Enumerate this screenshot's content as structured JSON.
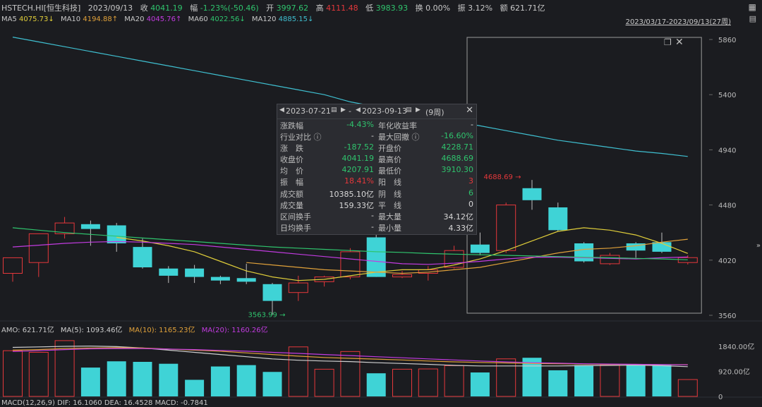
{
  "header": {
    "code": "HSTECH.HI[恒生科技]",
    "date": "2023/09/13",
    "close_label": "收",
    "close": "4041.19",
    "change_label": "幅",
    "change": "-1.23%(-50.46)",
    "open_label": "开",
    "open": "3997.62",
    "high_label": "高",
    "high": "4111.48",
    "low_label": "低",
    "low": "3983.93",
    "turnover_label": "换",
    "turnover": "0.00%",
    "amplitude_label": "振",
    "amplitude": "3.12%",
    "amount_label": "额",
    "amount": "621.71亿"
  },
  "ma_line": {
    "ma5": "MA5",
    "ma5_val": "4075.73↓",
    "ma10": "MA10",
    "ma10_val": "4194.88↑",
    "ma20": "MA20",
    "ma20_val": "4045.76↑",
    "ma60": "MA60",
    "ma60_val": "4022.56↓",
    "ma120": "MA120",
    "ma120_val": "4885.15↓"
  },
  "range_label": "2023/03/17-2023/09/13(27周)",
  "amo_line": {
    "amo": "AMO: 621.71亿",
    "ma5": "MA(5): 1093.46亿",
    "ma10": "MA(10): 1165.23亿",
    "ma20": "MA(20): 1160.26亿"
  },
  "macd_line": "MACD(12,26,9)  DIF: 16.1060  DEA: 16.4528  MACD: -0.7841",
  "colors": {
    "up": "#e5383b",
    "down": "#3fd3d6",
    "ma5": "#e0ce3a",
    "ma10": "#e0a13a",
    "ma20": "#c23be0",
    "ma60": "#2fc46d",
    "ma120": "#3fbfd0"
  },
  "popup": {
    "start": "2023-07-21",
    "end": "2023-09-13",
    "weeks": "(9周)",
    "rows": [
      {
        "lk": "涨跌幅",
        "lv": "-4.43%",
        "lc": "g",
        "rk": "年化收益率",
        "rv": "-",
        "rc": "n"
      },
      {
        "lk": "行业对比 ⓘ",
        "lv": "-",
        "lc": "n",
        "rk": "最大回撤 ⓘ",
        "rv": "-16.60%",
        "rc": "g"
      },
      {
        "lk": "涨　跌",
        "lv": "-187.52",
        "lc": "g",
        "rk": "开盘价",
        "rv": "4228.71",
        "rc": "g"
      },
      {
        "lk": "收盘价",
        "lv": "4041.19",
        "lc": "g",
        "rk": "最高价",
        "rv": "4688.69",
        "rc": "g"
      },
      {
        "lk": "均　价",
        "lv": "4207.91",
        "lc": "g",
        "rk": "最低价",
        "rv": "3910.30",
        "rc": "g"
      },
      {
        "lk": "振　幅",
        "lv": "18.41%",
        "lc": "r",
        "rk": "阳　线",
        "rv": "3",
        "rc": "r"
      },
      {
        "lk": "成交额",
        "lv": "10385.10亿",
        "lc": "n",
        "rk": "阴　线",
        "rv": "6",
        "rc": "g"
      },
      {
        "lk": "成交量",
        "lv": "159.33亿",
        "lc": "n",
        "rk": "平　线",
        "rv": "0",
        "rc": "n"
      },
      {
        "lk": "区间换手",
        "lv": "-",
        "lc": "n",
        "rk": "最大量",
        "rv": "34.12亿",
        "rc": "n"
      },
      {
        "lk": "日均换手",
        "lv": "-",
        "lc": "n",
        "rk": "最小量",
        "rv": "4.33亿",
        "rc": "n"
      }
    ]
  },
  "chart_data": {
    "type": "candlestick",
    "price_axis_ticks": [
      "5860",
      "5400",
      "4940",
      "4480",
      "4020",
      "3560"
    ],
    "price_ylim": [
      3560,
      5860
    ],
    "volume_axis_ticks": [
      "1840.00亿",
      "920.00亿",
      "0"
    ],
    "volume_ylim": [
      0,
      1840
    ],
    "annotations": [
      {
        "text": "4688.69",
        "candle": 19
      },
      {
        "text": "3563.99",
        "candle": 10
      }
    ],
    "candles": [
      {
        "o": 3910,
        "c": 4040,
        "h": 4040,
        "l": 3840,
        "vol": 1680
      },
      {
        "o": 4000,
        "c": 4240,
        "h": 4240,
        "l": 3880,
        "vol": 1620
      },
      {
        "o": 4240,
        "c": 4330,
        "h": 4380,
        "l": 4200,
        "vol": 2050
      },
      {
        "o": 4320,
        "c": 4280,
        "h": 4350,
        "l": 4140,
        "vol": 1060
      },
      {
        "o": 4310,
        "c": 4160,
        "h": 4330,
        "l": 4090,
        "vol": 1290
      },
      {
        "o": 4130,
        "c": 3960,
        "h": 4200,
        "l": 3950,
        "vol": 1270
      },
      {
        "o": 3950,
        "c": 3890,
        "h": 3970,
        "l": 3830,
        "vol": 1200
      },
      {
        "o": 3950,
        "c": 3880,
        "h": 3980,
        "l": 3830,
        "vol": 610
      },
      {
        "o": 3880,
        "c": 3850,
        "h": 3890,
        "l": 3820,
        "vol": 1100
      },
      {
        "o": 3870,
        "c": 3840,
        "h": 3990,
        "l": 3820,
        "vol": 1150
      },
      {
        "o": 3820,
        "c": 3680,
        "h": 3830,
        "l": 3564,
        "vol": 900
      },
      {
        "o": 3750,
        "c": 3830,
        "h": 3890,
        "l": 3680,
        "vol": 1820
      },
      {
        "o": 3840,
        "c": 3880,
        "h": 3890,
        "l": 3800,
        "vol": 1000
      },
      {
        "o": 3880,
        "c": 4090,
        "h": 4120,
        "l": 3860,
        "vol": 1650
      },
      {
        "o": 4210,
        "c": 3880,
        "h": 4250,
        "l": 3880,
        "vol": 850
      },
      {
        "o": 3880,
        "c": 3900,
        "h": 3930,
        "l": 3870,
        "vol": 1000
      },
      {
        "o": 3910,
        "c": 3940,
        "h": 3970,
        "l": 3850,
        "vol": 1010
      },
      {
        "o": 3960,
        "c": 4100,
        "h": 4140,
        "l": 3950,
        "vol": 1130
      },
      {
        "o": 4150,
        "c": 4080,
        "h": 4250,
        "l": 4060,
        "vol": 880
      },
      {
        "o": 4100,
        "c": 4480,
        "h": 4500,
        "l": 4080,
        "vol": 1380
      },
      {
        "o": 4620,
        "c": 4520,
        "h": 4689,
        "l": 4440,
        "vol": 1420
      },
      {
        "o": 4460,
        "c": 4270,
        "h": 4500,
        "l": 4260,
        "vol": 960
      },
      {
        "o": 4160,
        "c": 4010,
        "h": 4170,
        "l": 4000,
        "vol": 1150
      },
      {
        "o": 3990,
        "c": 4060,
        "h": 4080,
        "l": 3980,
        "vol": 1170
      },
      {
        "o": 4160,
        "c": 4100,
        "h": 4170,
        "l": 4040,
        "vol": 1180
      },
      {
        "o": 4170,
        "c": 4090,
        "h": 4250,
        "l": 4080,
        "vol": 1150
      },
      {
        "o": 4000,
        "c": 4041,
        "h": 4060,
        "l": 3984,
        "vol": 620
      }
    ],
    "series": [
      {
        "name": "MA5",
        "values": [
          null,
          null,
          null,
          null,
          4210,
          4180,
          4140,
          4090,
          4010,
          3930,
          3880,
          3850,
          3860,
          3890,
          3920,
          3940,
          3940,
          3980,
          4030,
          4100,
          4180,
          4260,
          4290,
          4270,
          4230,
          4160,
          4076
        ]
      },
      {
        "name": "MA10",
        "values": [
          null,
          null,
          null,
          null,
          null,
          null,
          null,
          null,
          null,
          4000,
          3980,
          3960,
          3940,
          3930,
          3920,
          3910,
          3920,
          3940,
          3960,
          4000,
          4040,
          4080,
          4110,
          4120,
          4140,
          4170,
          4195
        ]
      },
      {
        "name": "MA20",
        "values": [
          4130,
          4145,
          4160,
          4170,
          4175,
          4170,
          4160,
          4150,
          4130,
          4110,
          4090,
          4070,
          4050,
          4030,
          4010,
          3990,
          3985,
          3995,
          4010,
          4030,
          4045,
          4045,
          4040,
          4035,
          4030,
          4040,
          4046
        ]
      },
      {
        "name": "MA60",
        "values": [
          4290,
          4270,
          4250,
          4235,
          4220,
          4205,
          4190,
          4175,
          4160,
          4145,
          4130,
          4120,
          4110,
          4100,
          4090,
          4085,
          4075,
          4070,
          4065,
          4060,
          4055,
          4050,
          4045,
          4040,
          4035,
          4030,
          4023
        ]
      },
      {
        "name": "MA120",
        "values": [
          5880,
          5840,
          5800,
          5760,
          5720,
          5680,
          5640,
          5600,
          5560,
          5520,
          5480,
          5440,
          5400,
          5340,
          5300,
          5260,
          5220,
          5180,
          5140,
          5100,
          5060,
          5020,
          4990,
          4960,
          4930,
          4910,
          4885
        ]
      }
    ],
    "volume_series": [
      {
        "name": "MA(5)",
        "values": [
          1800,
          1820,
          1840,
          1850,
          1830,
          1780,
          1700,
          1620,
          1540,
          1460,
          1380,
          1330,
          1300,
          1280,
          1240,
          1210,
          1180,
          1140,
          1120,
          1120,
          1120,
          1120,
          1130,
          1140,
          1150,
          1130,
          1093
        ]
      },
      {
        "name": "MA(10)",
        "values": [
          1700,
          1720,
          1760,
          1780,
          1790,
          1780,
          1740,
          1700,
          1660,
          1600,
          1540,
          1480,
          1430,
          1400,
          1370,
          1340,
          1300,
          1270,
          1250,
          1230,
          1210,
          1200,
          1190,
          1180,
          1180,
          1170,
          1165
        ]
      },
      {
        "name": "MA(20)",
        "values": [
          1650,
          1680,
          1720,
          1750,
          1760,
          1760,
          1740,
          1720,
          1690,
          1660,
          1620,
          1580,
          1540,
          1500,
          1460,
          1420,
          1380,
          1340,
          1300,
          1270,
          1240,
          1220,
          1200,
          1190,
          1180,
          1170,
          1160
        ]
      }
    ]
  }
}
